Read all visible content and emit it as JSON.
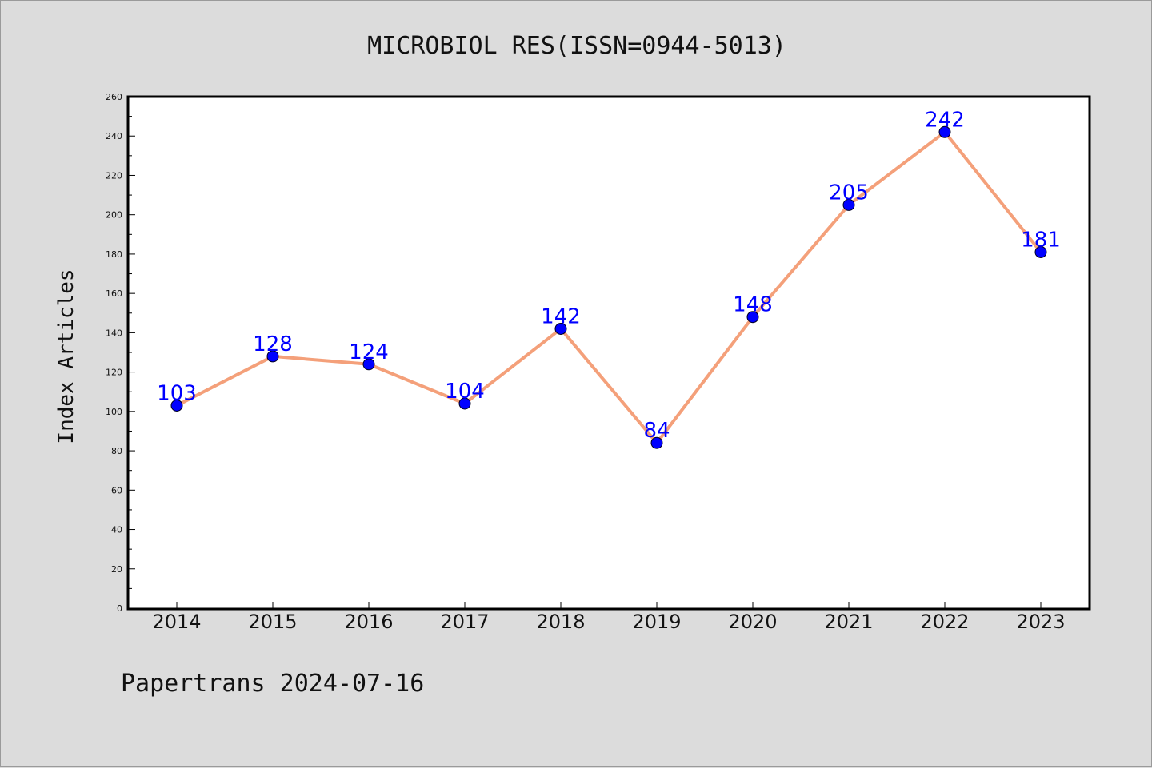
{
  "chart_data": {
    "type": "line",
    "title": "MICROBIOL RES(ISSN=0944-5013)",
    "xlabel": "",
    "ylabel": "Index Articles",
    "categories": [
      "2014",
      "2015",
      "2016",
      "2017",
      "2018",
      "2019",
      "2020",
      "2021",
      "2022",
      "2023"
    ],
    "series": [
      {
        "values": [
          103,
          128,
          124,
          104,
          142,
          84,
          148,
          205,
          242,
          181
        ]
      }
    ],
    "ylim": [
      0,
      260
    ],
    "yticks": [
      0,
      20,
      40,
      60,
      80,
      100,
      120,
      140,
      160,
      180,
      200,
      220,
      240,
      260
    ],
    "grid": false,
    "data_labels": true,
    "line_color": "#f4a07a",
    "marker_color": "#0000ff",
    "label_color": "#0000ff"
  },
  "footer": "Papertrans 2024-07-16"
}
